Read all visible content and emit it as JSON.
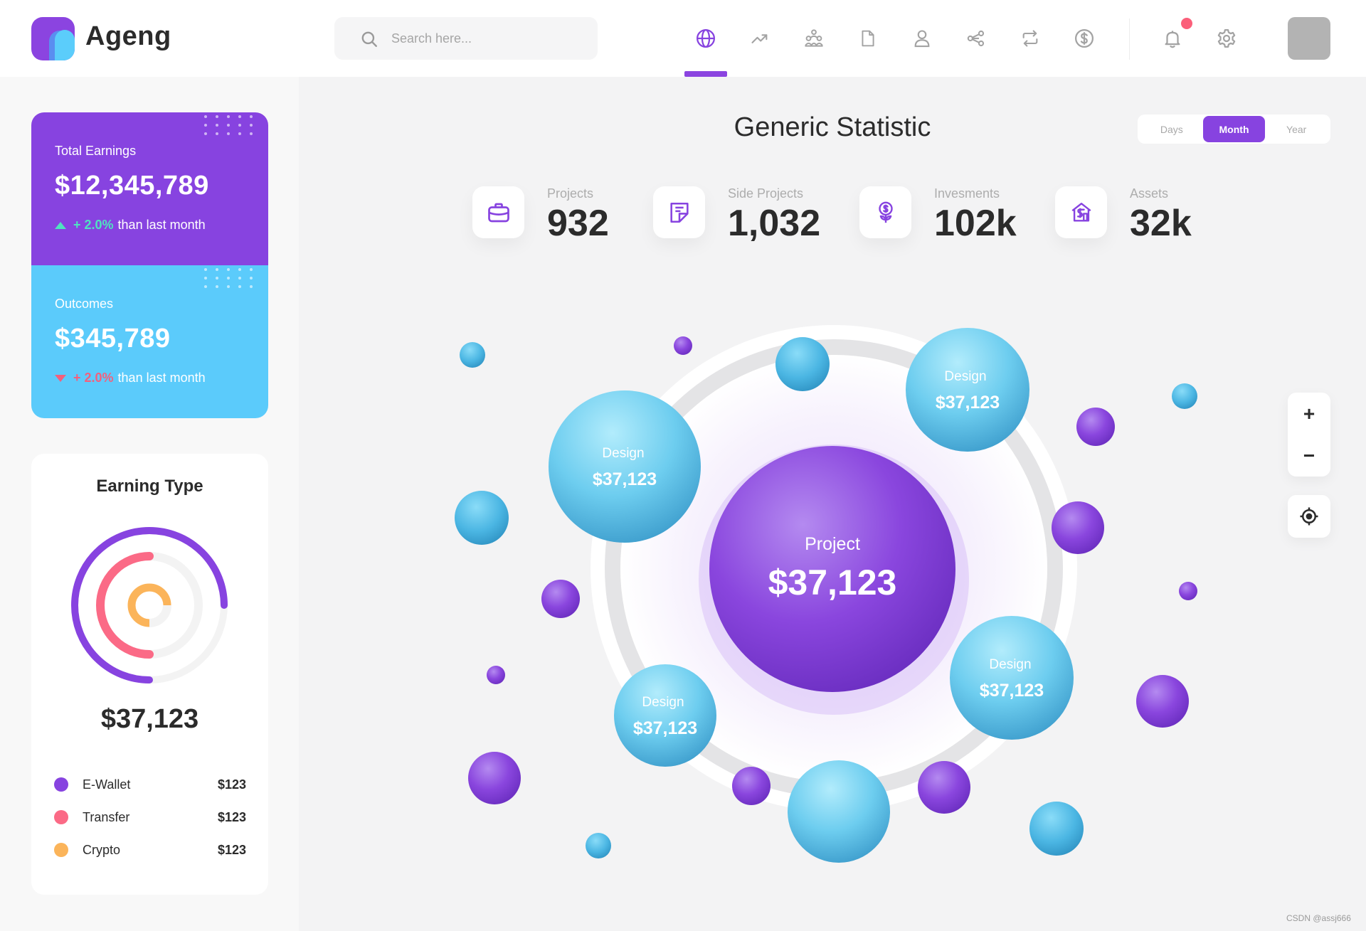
{
  "app": {
    "name": "Ageng"
  },
  "search": {
    "placeholder": "Search here..."
  },
  "nav": {
    "icons": [
      "globe-icon",
      "trending-icon",
      "team-icon",
      "document-icon",
      "user-icon",
      "share-icon",
      "repeat-icon",
      "dollar-icon"
    ],
    "active_index": 0,
    "notifications": {
      "has_unread": true
    },
    "accent": "#8743e0"
  },
  "earnings": {
    "label": "Total Earnings",
    "value": "$12,345,789",
    "change": "+ 2.0%",
    "change_suffix": "than last month",
    "color": "#8743e0"
  },
  "outcomes": {
    "label": "Outcomes",
    "value": "$345,789",
    "change": "+ 2.0%",
    "change_suffix": "than last month",
    "color": "#5bcbfb"
  },
  "earning_type": {
    "title": "Earning Type",
    "total": "$37,123",
    "items": [
      {
        "name": "E-Wallet",
        "value": "$123",
        "color": "#8743e0"
      },
      {
        "name": "Transfer",
        "value": "$123",
        "color": "#fb6a86"
      },
      {
        "name": "Crypto",
        "value": "$123",
        "color": "#fbb45a"
      }
    ]
  },
  "main": {
    "title": "Generic Statistic"
  },
  "period": {
    "options": [
      "Days",
      "Month",
      "Year"
    ],
    "selected": "Month"
  },
  "stats": [
    {
      "label": "Projects",
      "value": "932",
      "icon": "briefcase-icon"
    },
    {
      "label": "Side Projects",
      "value": "1,032",
      "icon": "note-icon"
    },
    {
      "label": "Invesments",
      "value": "102k",
      "icon": "money-plant-icon"
    },
    {
      "label": "Assets",
      "value": "32k",
      "icon": "house-dollar-icon"
    }
  ],
  "bubble_chart": {
    "center": {
      "label": "Project",
      "value": "$37,123"
    },
    "labeled": [
      {
        "label": "Design",
        "value": "$37,123"
      },
      {
        "label": "Design",
        "value": "$37,123"
      },
      {
        "label": "Design",
        "value": "$37,123"
      },
      {
        "label": "Design",
        "value": "$37,123"
      }
    ]
  },
  "zoom": {
    "in": "+",
    "out": "−"
  },
  "watermark": "CSDN @assj666"
}
